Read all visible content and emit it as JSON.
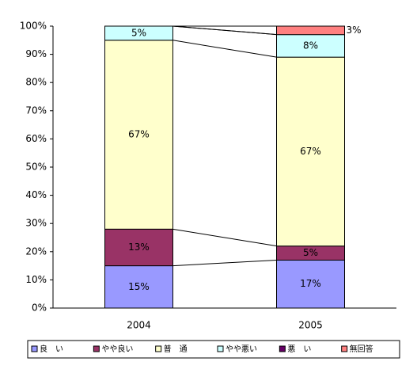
{
  "chart_data": {
    "type": "stacked_bar_percent",
    "categories": [
      "2004",
      "2005"
    ],
    "series": [
      {
        "name": "良　い",
        "color": "#9999ff",
        "values": [
          15,
          17
        ],
        "value_labels": [
          "15%",
          "17%"
        ]
      },
      {
        "name": "やや良い",
        "color": "#993366",
        "values": [
          13,
          5
        ],
        "value_labels": [
          "13%",
          "5%"
        ]
      },
      {
        "name": "普　通",
        "color": "#ffffcc",
        "values": [
          67,
          67
        ],
        "value_labels": [
          "67%",
          "67%"
        ]
      },
      {
        "name": "やや悪い",
        "color": "#ccffff",
        "values": [
          5,
          8
        ],
        "value_labels": [
          "5%",
          "8%"
        ]
      },
      {
        "name": "悪　い",
        "color": "#660066",
        "values": [
          0,
          0
        ],
        "value_labels": [
          null,
          null
        ]
      },
      {
        "name": "無回答",
        "color": "#ff8080",
        "values": [
          0,
          3
        ],
        "value_labels": [
          null,
          "3%"
        ]
      }
    ],
    "ylim": [
      0,
      100
    ],
    "yticks": [
      {
        "value": 0,
        "label": "0%"
      },
      {
        "value": 10,
        "label": "10%"
      },
      {
        "value": 20,
        "label": "20%"
      },
      {
        "value": 30,
        "label": "30%"
      },
      {
        "value": 40,
        "label": "40%"
      },
      {
        "value": 50,
        "label": "50%"
      },
      {
        "value": 60,
        "label": "60%"
      },
      {
        "value": 70,
        "label": "70%"
      },
      {
        "value": 80,
        "label": "80%"
      },
      {
        "value": 90,
        "label": "90%"
      },
      {
        "value": 100,
        "label": "100%"
      }
    ],
    "legend": "bottom",
    "series_lines": true
  }
}
